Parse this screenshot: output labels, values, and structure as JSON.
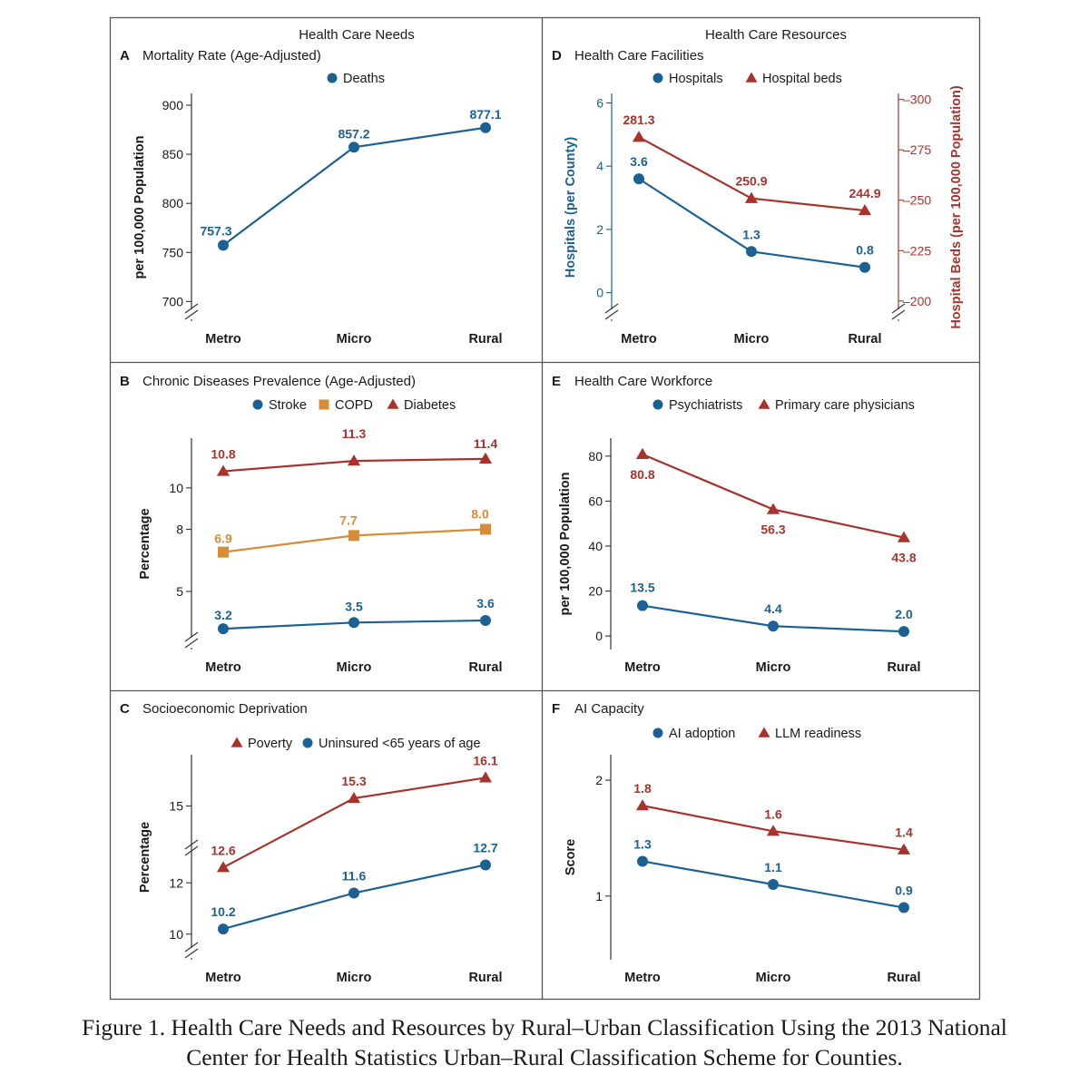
{
  "columns": {
    "left": "Health Care Needs",
    "right": "Health Care Resources"
  },
  "caption": {
    "line1": "Figure 1.  Health Care Needs and Resources by Rural–Urban Classification Using the 2013 National",
    "line2": "Center for Health Statistics Urban–Rural Classification Scheme for Counties."
  },
  "colors": {
    "blue": "#1c6194",
    "red": "#a8332c",
    "orange": "#d88c35"
  },
  "chart_data": [
    {
      "panel": "A",
      "title": "Mortality Rate (Age-Adjusted)",
      "type": "line",
      "categories": [
        "Metro",
        "Micro",
        "Rural"
      ],
      "ylabel": "per 100,000 Population",
      "ylim": [
        680,
        912
      ],
      "yticks": [
        700,
        750,
        800,
        850,
        900
      ],
      "axis_break": true,
      "series": [
        {
          "name": "Deaths",
          "marker": "circle",
          "color": "#1c6194",
          "values": [
            757.3,
            857.2,
            877.1
          ],
          "labels": [
            "757.3",
            "857.2",
            "877.1"
          ]
        }
      ]
    },
    {
      "panel": "B",
      "title": "Chronic Diseases Prevalence (Age-Adjusted)",
      "type": "line",
      "categories": [
        "Metro",
        "Micro",
        "Rural"
      ],
      "ylabel": "Percentage",
      "ylim": [
        2.2,
        12.4
      ],
      "yticks": [
        5,
        8,
        10
      ],
      "axis_break": true,
      "series": [
        {
          "name": "Stroke",
          "marker": "circle",
          "color": "#1c6194",
          "values": [
            3.2,
            3.5,
            3.6
          ],
          "labels": [
            "3.2",
            "3.5",
            "3.6"
          ]
        },
        {
          "name": "COPD",
          "marker": "square",
          "color": "#d88c35",
          "values": [
            6.9,
            7.7,
            8.0
          ],
          "labels": [
            "6.9",
            "7.7",
            "8.0"
          ]
        },
        {
          "name": "Diabetes",
          "marker": "triangle",
          "color": "#a8332c",
          "values": [
            10.8,
            11.3,
            11.4
          ],
          "labels": [
            "10.8",
            "11.3",
            "11.4"
          ]
        }
      ]
    },
    {
      "panel": "C",
      "title": "Socioeconomic Deprivation",
      "type": "line",
      "categories": [
        "Metro",
        "Micro",
        "Rural"
      ],
      "ylabel": "Percentage",
      "ylim": [
        9,
        17
      ],
      "yticks": [
        10,
        12,
        15
      ],
      "axis_break": true,
      "series": [
        {
          "name": "Poverty",
          "marker": "triangle",
          "color": "#a8332c",
          "values": [
            12.6,
            15.3,
            16.1
          ],
          "labels": [
            "12.6",
            "15.3",
            "16.1"
          ]
        },
        {
          "name": "Uninsured <65 years of age",
          "marker": "circle",
          "color": "#1c6194",
          "values": [
            10.2,
            11.6,
            12.7
          ],
          "labels": [
            "10.2",
            "11.6",
            "12.7"
          ]
        }
      ]
    },
    {
      "panel": "D",
      "title": "Health Care Facilities",
      "type": "line",
      "categories": [
        "Metro",
        "Micro",
        "Rural"
      ],
      "ylabel": "Hospitals (per County)",
      "ylim": [
        -0.9,
        6.3
      ],
      "yticks": [
        0,
        2,
        4,
        6
      ],
      "y2label": "Hospital Beds (per 100,000 Population)",
      "y2lim": [
        190,
        303
      ],
      "y2ticks": [
        200,
        225,
        250,
        275,
        300
      ],
      "axis_break": true,
      "series": [
        {
          "name": "Hospitals",
          "marker": "circle",
          "color": "#1c6194",
          "axis": "left",
          "values": [
            3.6,
            1.3,
            0.8
          ],
          "labels": [
            "3.6",
            "1.3",
            "0.8"
          ]
        },
        {
          "name": "Hospital beds",
          "marker": "triangle",
          "color": "#a8332c",
          "axis": "right",
          "values": [
            281.3,
            250.9,
            244.9
          ],
          "labels": [
            "281.3",
            "250.9",
            "244.9"
          ]
        }
      ]
    },
    {
      "panel": "E",
      "title": "Health Care Workforce",
      "type": "line",
      "categories": [
        "Metro",
        "Micro",
        "Rural"
      ],
      "ylabel": "per 100,000 Population",
      "ylim": [
        -6,
        88
      ],
      "yticks": [
        0,
        20,
        40,
        60,
        80
      ],
      "axis_break": false,
      "series": [
        {
          "name": "Psychiatrists",
          "marker": "circle",
          "color": "#1c6194",
          "values": [
            13.5,
            4.4,
            2.0
          ],
          "labels": [
            "13.5",
            "4.4",
            "2.0"
          ]
        },
        {
          "name": "Primary care physicians",
          "marker": "triangle",
          "color": "#a8332c",
          "values": [
            80.8,
            56.3,
            43.8
          ],
          "labels": [
            "80.8",
            "56.3",
            "43.8"
          ]
        }
      ]
    },
    {
      "panel": "F",
      "title": "AI Capacity",
      "type": "line",
      "categories": [
        "Metro",
        "Micro",
        "Rural"
      ],
      "ylabel": "Score",
      "ylim": [
        0.45,
        2.22
      ],
      "yticks": [
        1,
        2
      ],
      "axis_break": false,
      "series": [
        {
          "name": "AI adoption",
          "marker": "circle",
          "color": "#1c6194",
          "values": [
            1.3,
            1.1,
            0.9
          ],
          "labels": [
            "1.3",
            "1.1",
            "0.9"
          ]
        },
        {
          "name": "LLM readiness",
          "marker": "triangle",
          "color": "#a8332c",
          "values": [
            1.78,
            1.56,
            1.4
          ],
          "labels": [
            "1.8",
            "1.6",
            "1.4"
          ]
        }
      ]
    }
  ]
}
